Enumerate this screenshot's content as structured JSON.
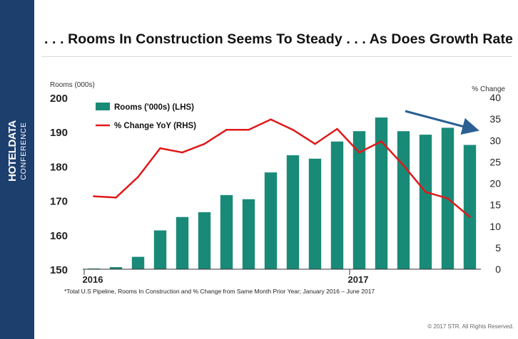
{
  "brand": {
    "line1": "HOTELDATA",
    "line2": "CONFERENCE"
  },
  "title": ". . . Rooms In Construction Seems To Steady . . . As Does Growth Rate",
  "footnote": "*Total U.S Pipeline, Rooms In Construction and % Change from Same Month Prior Year; January 2016 – June 2017",
  "copyright": "© 2017 STR. All Rights Reserved.",
  "colors": {
    "bar": "#1a8a78",
    "line": "#e0191b",
    "arrow": "#2a5f93",
    "sidebar": "#1d3f6e"
  },
  "chart_data": {
    "type": "bar+line",
    "left_axis": {
      "label": "Rooms (000s)",
      "range": [
        150,
        200
      ],
      "ticks": [
        150,
        160,
        170,
        180,
        190,
        200
      ]
    },
    "right_axis": {
      "label": "% Change",
      "range": [
        0,
        40
      ],
      "ticks": [
        0,
        5,
        10,
        15,
        20,
        25,
        30,
        35,
        40
      ]
    },
    "x_ticks": [
      {
        "index": 0,
        "label": "2016"
      },
      {
        "index": 12,
        "label": "2017"
      }
    ],
    "series": [
      {
        "name": "Rooms ('000s) (LHS)",
        "type": "bar",
        "axis": "left",
        "values": [
          150.2,
          150.6,
          153.6,
          161.3,
          165.2,
          166.6,
          171.6,
          170.4,
          178.2,
          183.2,
          182.2,
          187.2,
          190.2,
          194.2,
          190.2,
          189.2,
          191.2,
          186.2
        ]
      },
      {
        "name": "% Change YoY (RHS)",
        "type": "line",
        "axis": "right",
        "values": [
          17.0,
          16.7,
          21.5,
          28.2,
          27.2,
          29.2,
          32.5,
          32.5,
          34.9,
          32.5,
          29.2,
          32.7,
          27.2,
          29.8,
          24.2,
          18.0,
          16.5,
          12.2
        ]
      }
    ],
    "annotation": "downward trend arrow",
    "legend_position": "top-left",
    "grid": false
  }
}
